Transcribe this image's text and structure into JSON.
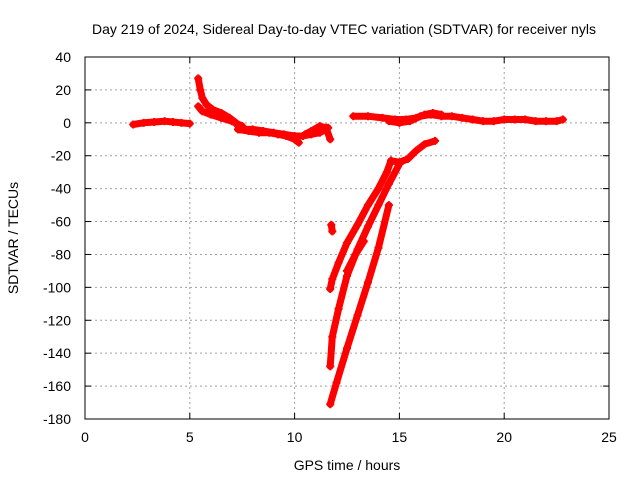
{
  "chart_data": {
    "type": "scatter",
    "title": "Day 219 of 2024, Sidereal Day-to-day VTEC variation (SDTVAR) for receiver nyls",
    "xlabel": "GPS time / hours",
    "ylabel": "SDTVAR / TECUs",
    "xlim": [
      0,
      25
    ],
    "ylim": [
      -180,
      40
    ],
    "xticks": [
      0,
      5,
      10,
      15,
      20,
      25
    ],
    "yticks": [
      -180,
      -160,
      -140,
      -120,
      -100,
      -80,
      -60,
      -40,
      -20,
      0,
      20,
      40
    ],
    "grid": true,
    "marker": "+",
    "color": "#ff0000",
    "series": [
      {
        "name": "seg1",
        "points": [
          [
            2.3,
            -1
          ],
          [
            2.8,
            0
          ],
          [
            3.3,
            0.5
          ],
          [
            3.8,
            1
          ],
          [
            4.2,
            0.5
          ],
          [
            4.6,
            0
          ],
          [
            5.0,
            -0.5
          ]
        ]
      },
      {
        "name": "seg2",
        "points": [
          [
            5.4,
            27
          ],
          [
            5.5,
            20
          ],
          [
            5.6,
            15
          ],
          [
            5.8,
            11
          ],
          [
            6.1,
            8
          ],
          [
            6.5,
            6
          ],
          [
            6.9,
            3
          ],
          [
            7.2,
            0
          ],
          [
            7.4,
            -4
          ]
        ]
      },
      {
        "name": "seg3",
        "points": [
          [
            5.4,
            10
          ],
          [
            5.6,
            7
          ],
          [
            6.0,
            5
          ],
          [
            6.5,
            3
          ],
          [
            7.0,
            1
          ],
          [
            7.5,
            -2
          ]
        ]
      },
      {
        "name": "seg4",
        "points": [
          [
            7.3,
            -4
          ],
          [
            7.8,
            -5
          ],
          [
            8.3,
            -6
          ],
          [
            8.8,
            -6
          ],
          [
            9.2,
            -7
          ],
          [
            9.6,
            -8
          ],
          [
            10.0,
            -10
          ],
          [
            10.2,
            -12
          ]
        ]
      },
      {
        "name": "seg5",
        "points": [
          [
            7.5,
            -4
          ],
          [
            8.0,
            -4
          ],
          [
            8.5,
            -5
          ],
          [
            9.0,
            -6
          ],
          [
            9.5,
            -7
          ],
          [
            10.0,
            -8
          ],
          [
            10.4,
            -8
          ],
          [
            10.8,
            -7
          ],
          [
            11.2,
            -6
          ],
          [
            11.6,
            -3
          ]
        ]
      },
      {
        "name": "seg6",
        "points": [
          [
            10.5,
            -7
          ],
          [
            10.8,
            -5
          ],
          [
            11.2,
            -2
          ],
          [
            11.5,
            -3
          ],
          [
            11.7,
            -10
          ]
        ]
      },
      {
        "name": "seg7",
        "points": [
          [
            11.75,
            -62
          ],
          [
            11.8,
            -66
          ]
        ]
      },
      {
        "name": "seg8",
        "points": [
          [
            11.7,
            -101
          ],
          [
            11.8,
            -95
          ],
          [
            12.1,
            -85
          ],
          [
            12.5,
            -73
          ],
          [
            13.0,
            -62
          ],
          [
            13.5,
            -50
          ],
          [
            14.0,
            -40
          ],
          [
            14.4,
            -30
          ],
          [
            14.6,
            -23
          ]
        ]
      },
      {
        "name": "seg9",
        "points": [
          [
            11.7,
            -148
          ],
          [
            11.8,
            -130
          ],
          [
            12.1,
            -113
          ],
          [
            12.5,
            -93
          ],
          [
            13.0,
            -77
          ],
          [
            13.5,
            -63
          ],
          [
            14.0,
            -50
          ],
          [
            14.5,
            -37
          ],
          [
            15.0,
            -25
          ]
        ]
      },
      {
        "name": "seg10",
        "points": [
          [
            11.7,
            -171
          ],
          [
            12.0,
            -158
          ],
          [
            12.5,
            -137
          ],
          [
            13.0,
            -117
          ],
          [
            13.5,
            -97
          ],
          [
            14.0,
            -76
          ],
          [
            14.5,
            -50
          ]
        ]
      },
      {
        "name": "seg11",
        "points": [
          [
            12.5,
            -90
          ],
          [
            12.9,
            -80
          ],
          [
            13.3,
            -72
          ]
        ]
      },
      {
        "name": "seg12",
        "points": [
          [
            14.6,
            -23
          ],
          [
            15.0,
            -24
          ],
          [
            15.4,
            -22
          ],
          [
            15.8,
            -17
          ],
          [
            16.2,
            -13
          ],
          [
            16.7,
            -11
          ]
        ]
      },
      {
        "name": "seg13",
        "points": [
          [
            12.8,
            4
          ],
          [
            13.5,
            4
          ],
          [
            14.2,
            3
          ],
          [
            14.8,
            2
          ],
          [
            15.3,
            2
          ],
          [
            15.8,
            3
          ],
          [
            16.2,
            5
          ],
          [
            16.6,
            6
          ],
          [
            17.0,
            5
          ]
        ]
      },
      {
        "name": "seg14",
        "points": [
          [
            14.5,
            1
          ],
          [
            15.0,
            0
          ],
          [
            15.5,
            1
          ],
          [
            16.0,
            4
          ],
          [
            16.5,
            5
          ],
          [
            17.0,
            4
          ],
          [
            17.5,
            4
          ],
          [
            18.0,
            3
          ],
          [
            18.5,
            2
          ],
          [
            19.0,
            1
          ],
          [
            19.5,
            1
          ],
          [
            20.0,
            2
          ],
          [
            20.5,
            2
          ],
          [
            21.0,
            2
          ],
          [
            21.5,
            1
          ],
          [
            22.0,
            1
          ],
          [
            22.5,
            1
          ],
          [
            22.8,
            2
          ]
        ]
      }
    ]
  }
}
